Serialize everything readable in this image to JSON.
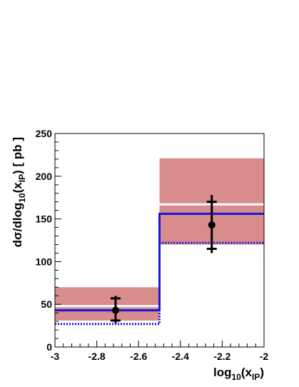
{
  "chart_data": {
    "type": "histogram",
    "xlabel": {
      "main": "log",
      "sub1": "10",
      "mid": "(x",
      "sub2": "IP",
      "end": ")"
    },
    "ylabel": {
      "main": "dσ/dlog",
      "sub1": "10",
      "mid": "(x",
      "sub2": "IP",
      "end": ") [ pb ]"
    },
    "xlim": [
      -3,
      -2
    ],
    "ylim": [
      0,
      250
    ],
    "x_ticks": [
      -3,
      -2.8,
      -2.6,
      -2.4,
      -2.2,
      -2
    ],
    "x_tick_labels": [
      "-3",
      "-2.8",
      "-2.6",
      "-2.4",
      "-2.2",
      "-2"
    ],
    "y_ticks": [
      0,
      50,
      100,
      150,
      200,
      250
    ],
    "y_tick_labels": [
      "0",
      "50",
      "100",
      "150",
      "200",
      "250"
    ],
    "bins": [
      [
        -3,
        -2.5
      ],
      [
        -2.5,
        -2
      ]
    ],
    "band": {
      "color": "#d98c8c",
      "lower": [
        31,
        120
      ],
      "upper": [
        70,
        221
      ]
    },
    "white_line": {
      "color": "#ffffff",
      "values": [
        48,
        167
      ]
    },
    "blue_solid": {
      "color": "#1818d8",
      "values": [
        43,
        156
      ]
    },
    "blue_dotted": {
      "color": "#1818d8",
      "values": [
        27,
        122
      ]
    },
    "points": {
      "x": [
        -2.71,
        -2.25
      ],
      "y": [
        43,
        143
      ],
      "stat_low": [
        31,
        115
      ],
      "stat_high": [
        57,
        170
      ],
      "tot_low": [
        28,
        110
      ],
      "tot_high": [
        60,
        178
      ]
    }
  }
}
